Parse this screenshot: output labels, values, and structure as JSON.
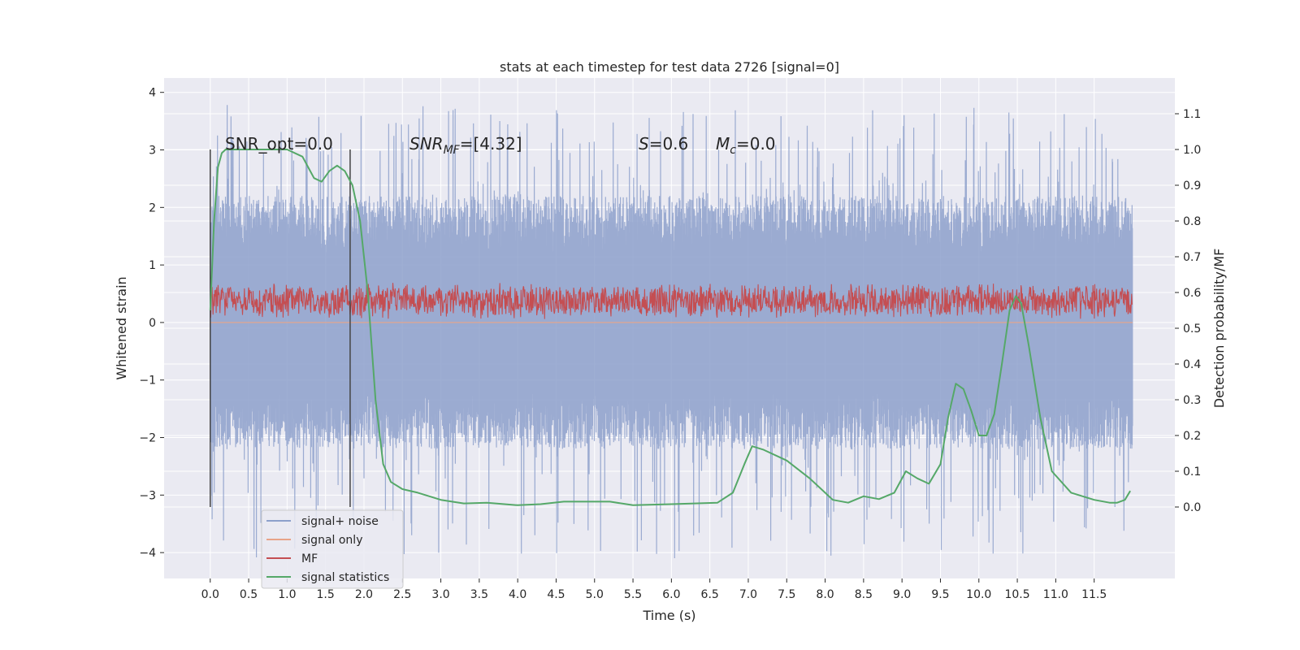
{
  "chart_data": {
    "type": "line",
    "title": "stats at each timestep for test data 2726 [signal=0]",
    "xlabel": "Time (s)",
    "ylabel": "Whitened strain",
    "ylabel_right": "Detection probability/MF",
    "xlim": [
      -0.6,
      12.55
    ],
    "ylim": [
      -4.45,
      4.25
    ],
    "ylim_right": [
      -0.2,
      1.2
    ],
    "x_ticks": [
      "0.0",
      "0.5",
      "1.0",
      "1.5",
      "2.0",
      "2.5",
      "3.0",
      "3.5",
      "4.0",
      "4.5",
      "5.0",
      "5.5",
      "6.0",
      "6.5",
      "7.0",
      "7.5",
      "8.0",
      "8.5",
      "9.0",
      "9.5",
      "10.0",
      "10.5",
      "11.0",
      "11.5"
    ],
    "y_ticks": [
      "−4",
      "−3",
      "−2",
      "−1",
      "0",
      "1",
      "2",
      "3",
      "4"
    ],
    "y_ticks_right": [
      "0.0",
      "0.1",
      "0.2",
      "0.3",
      "0.4",
      "0.5",
      "0.6",
      "0.7",
      "0.8",
      "0.9",
      "1.0",
      "1.1"
    ],
    "grid": true,
    "legend_position": "lower-left",
    "annotations": {
      "snr_opt": "SNR_opt=0.0",
      "snr_mf_base": "SNR",
      "snr_mf_sub": "MF",
      "snr_mf_value": "=[4.32]",
      "s_sym": "S",
      "s_value": "=0.6",
      "mc_sym": "M",
      "mc_sub": "c",
      "mc_value": "=0.0"
    },
    "vertical_lines": [
      0.0,
      1.82
    ],
    "series": [
      {
        "name": "signal+ noise",
        "color": "#8da0cb",
        "axis": "left",
        "x_range": [
          0.0,
          12.0
        ],
        "typical_amplitude": 2.2,
        "extreme_range": [
          -4.1,
          3.85
        ]
      },
      {
        "name": "signal only",
        "color": "#e8a488",
        "axis": "left",
        "x_range": [
          0.0,
          12.0
        ],
        "constant": 0.0
      },
      {
        "name": "MF",
        "color": "#c44e52",
        "axis": "left",
        "x_range": [
          0.0,
          12.0
        ],
        "band": [
          0.05,
          0.7
        ]
      },
      {
        "name": "signal statistics",
        "color": "#55a868",
        "axis": "right",
        "x": [
          0.0,
          0.05,
          0.1,
          0.15,
          0.2,
          0.3,
          0.5,
          0.8,
          1.0,
          1.2,
          1.35,
          1.45,
          1.55,
          1.65,
          1.75,
          1.85,
          1.95,
          2.05,
          2.15,
          2.25,
          2.35,
          2.5,
          2.7,
          3.0,
          3.3,
          3.6,
          4.0,
          4.3,
          4.6,
          5.0,
          5.2,
          5.5,
          6.0,
          6.3,
          6.6,
          6.8,
          6.95,
          7.05,
          7.2,
          7.5,
          7.8,
          8.1,
          8.3,
          8.5,
          8.7,
          8.9,
          9.05,
          9.2,
          9.35,
          9.5,
          9.6,
          9.7,
          9.8,
          9.9,
          10.0,
          10.1,
          10.2,
          10.3,
          10.4,
          10.48,
          10.55,
          10.65,
          10.8,
          10.95,
          11.2,
          11.5,
          11.7,
          11.8,
          11.9,
          11.97
        ],
        "values": [
          0.55,
          0.8,
          0.95,
          0.99,
          1.0,
          1.0,
          1.0,
          1.0,
          1.0,
          0.98,
          0.92,
          0.91,
          0.94,
          0.955,
          0.94,
          0.9,
          0.8,
          0.6,
          0.3,
          0.12,
          0.07,
          0.05,
          0.04,
          0.02,
          0.01,
          0.012,
          0.005,
          0.008,
          0.015,
          0.015,
          0.015,
          0.005,
          0.008,
          0.01,
          0.012,
          0.04,
          0.12,
          0.17,
          0.16,
          0.13,
          0.08,
          0.02,
          0.012,
          0.03,
          0.022,
          0.04,
          0.1,
          0.08,
          0.065,
          0.12,
          0.25,
          0.345,
          0.33,
          0.27,
          0.2,
          0.2,
          0.26,
          0.4,
          0.55,
          0.59,
          0.57,
          0.45,
          0.25,
          0.1,
          0.04,
          0.02,
          0.012,
          0.012,
          0.02,
          0.045
        ]
      }
    ]
  }
}
